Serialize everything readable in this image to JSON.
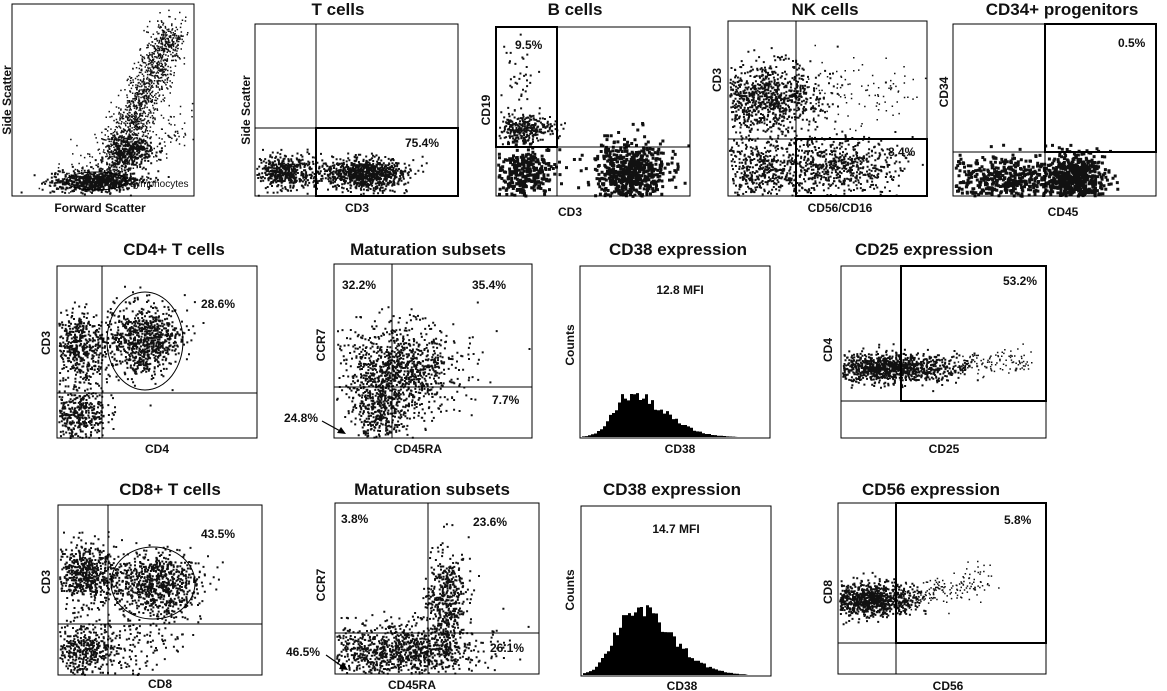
{
  "chart_data": [
    {
      "type": "scatter",
      "title": "",
      "xlabel": "Forward Scatter",
      "ylabel": "Side Scatter",
      "annotations": [
        "Lymphocytes"
      ]
    },
    {
      "type": "scatter",
      "title": "T cells",
      "xlabel": "CD3",
      "ylabel": "Side Scatter",
      "gate_values": [
        "75.4%"
      ]
    },
    {
      "type": "scatter",
      "title": "B cells",
      "xlabel": "CD3",
      "ylabel": "CD19",
      "gate_values": [
        "9.5%"
      ]
    },
    {
      "type": "scatter",
      "title": "NK cells",
      "xlabel": "CD56/CD16",
      "ylabel": "CD3",
      "gate_values": [
        "8.4%"
      ]
    },
    {
      "type": "scatter",
      "title": "CD34+ progenitors",
      "xlabel": "CD45",
      "ylabel": "CD34",
      "gate_values": [
        "0.5%"
      ]
    },
    {
      "type": "scatter",
      "title": "CD4+ T cells",
      "xlabel": "CD4",
      "ylabel": "CD3",
      "gate_values": [
        "28.6%"
      ]
    },
    {
      "type": "scatter",
      "title": "Maturation subsets",
      "xlabel": "CD45RA",
      "ylabel": "CCR7",
      "gate_values": [
        "32.2%",
        "35.4%",
        "24.8%",
        "7.7%"
      ]
    },
    {
      "type": "histogram",
      "title": "CD38 expression",
      "xlabel": "CD38",
      "ylabel": "Counts",
      "annotations": [
        "12.8 MFI"
      ]
    },
    {
      "type": "scatter",
      "title": "CD25 expression",
      "xlabel": "CD25",
      "ylabel": "CD4",
      "gate_values": [
        "53.2%"
      ]
    },
    {
      "type": "scatter",
      "title": "CD8+ T cells",
      "xlabel": "CD8",
      "ylabel": "CD3",
      "gate_values": [
        "43.5%"
      ]
    },
    {
      "type": "scatter",
      "title": "Maturation subsets",
      "xlabel": "CD45RA",
      "ylabel": "CCR7",
      "gate_values": [
        "3.8%",
        "23.6%",
        "46.5%",
        "26.1%"
      ]
    },
    {
      "type": "histogram",
      "title": "CD38 expression",
      "xlabel": "CD38",
      "ylabel": "Counts",
      "annotations": [
        "14.7 MFI"
      ]
    },
    {
      "type": "scatter",
      "title": "CD56 expression",
      "xlabel": "CD56",
      "ylabel": "CD8",
      "gate_values": [
        "5.8%"
      ]
    }
  ]
}
